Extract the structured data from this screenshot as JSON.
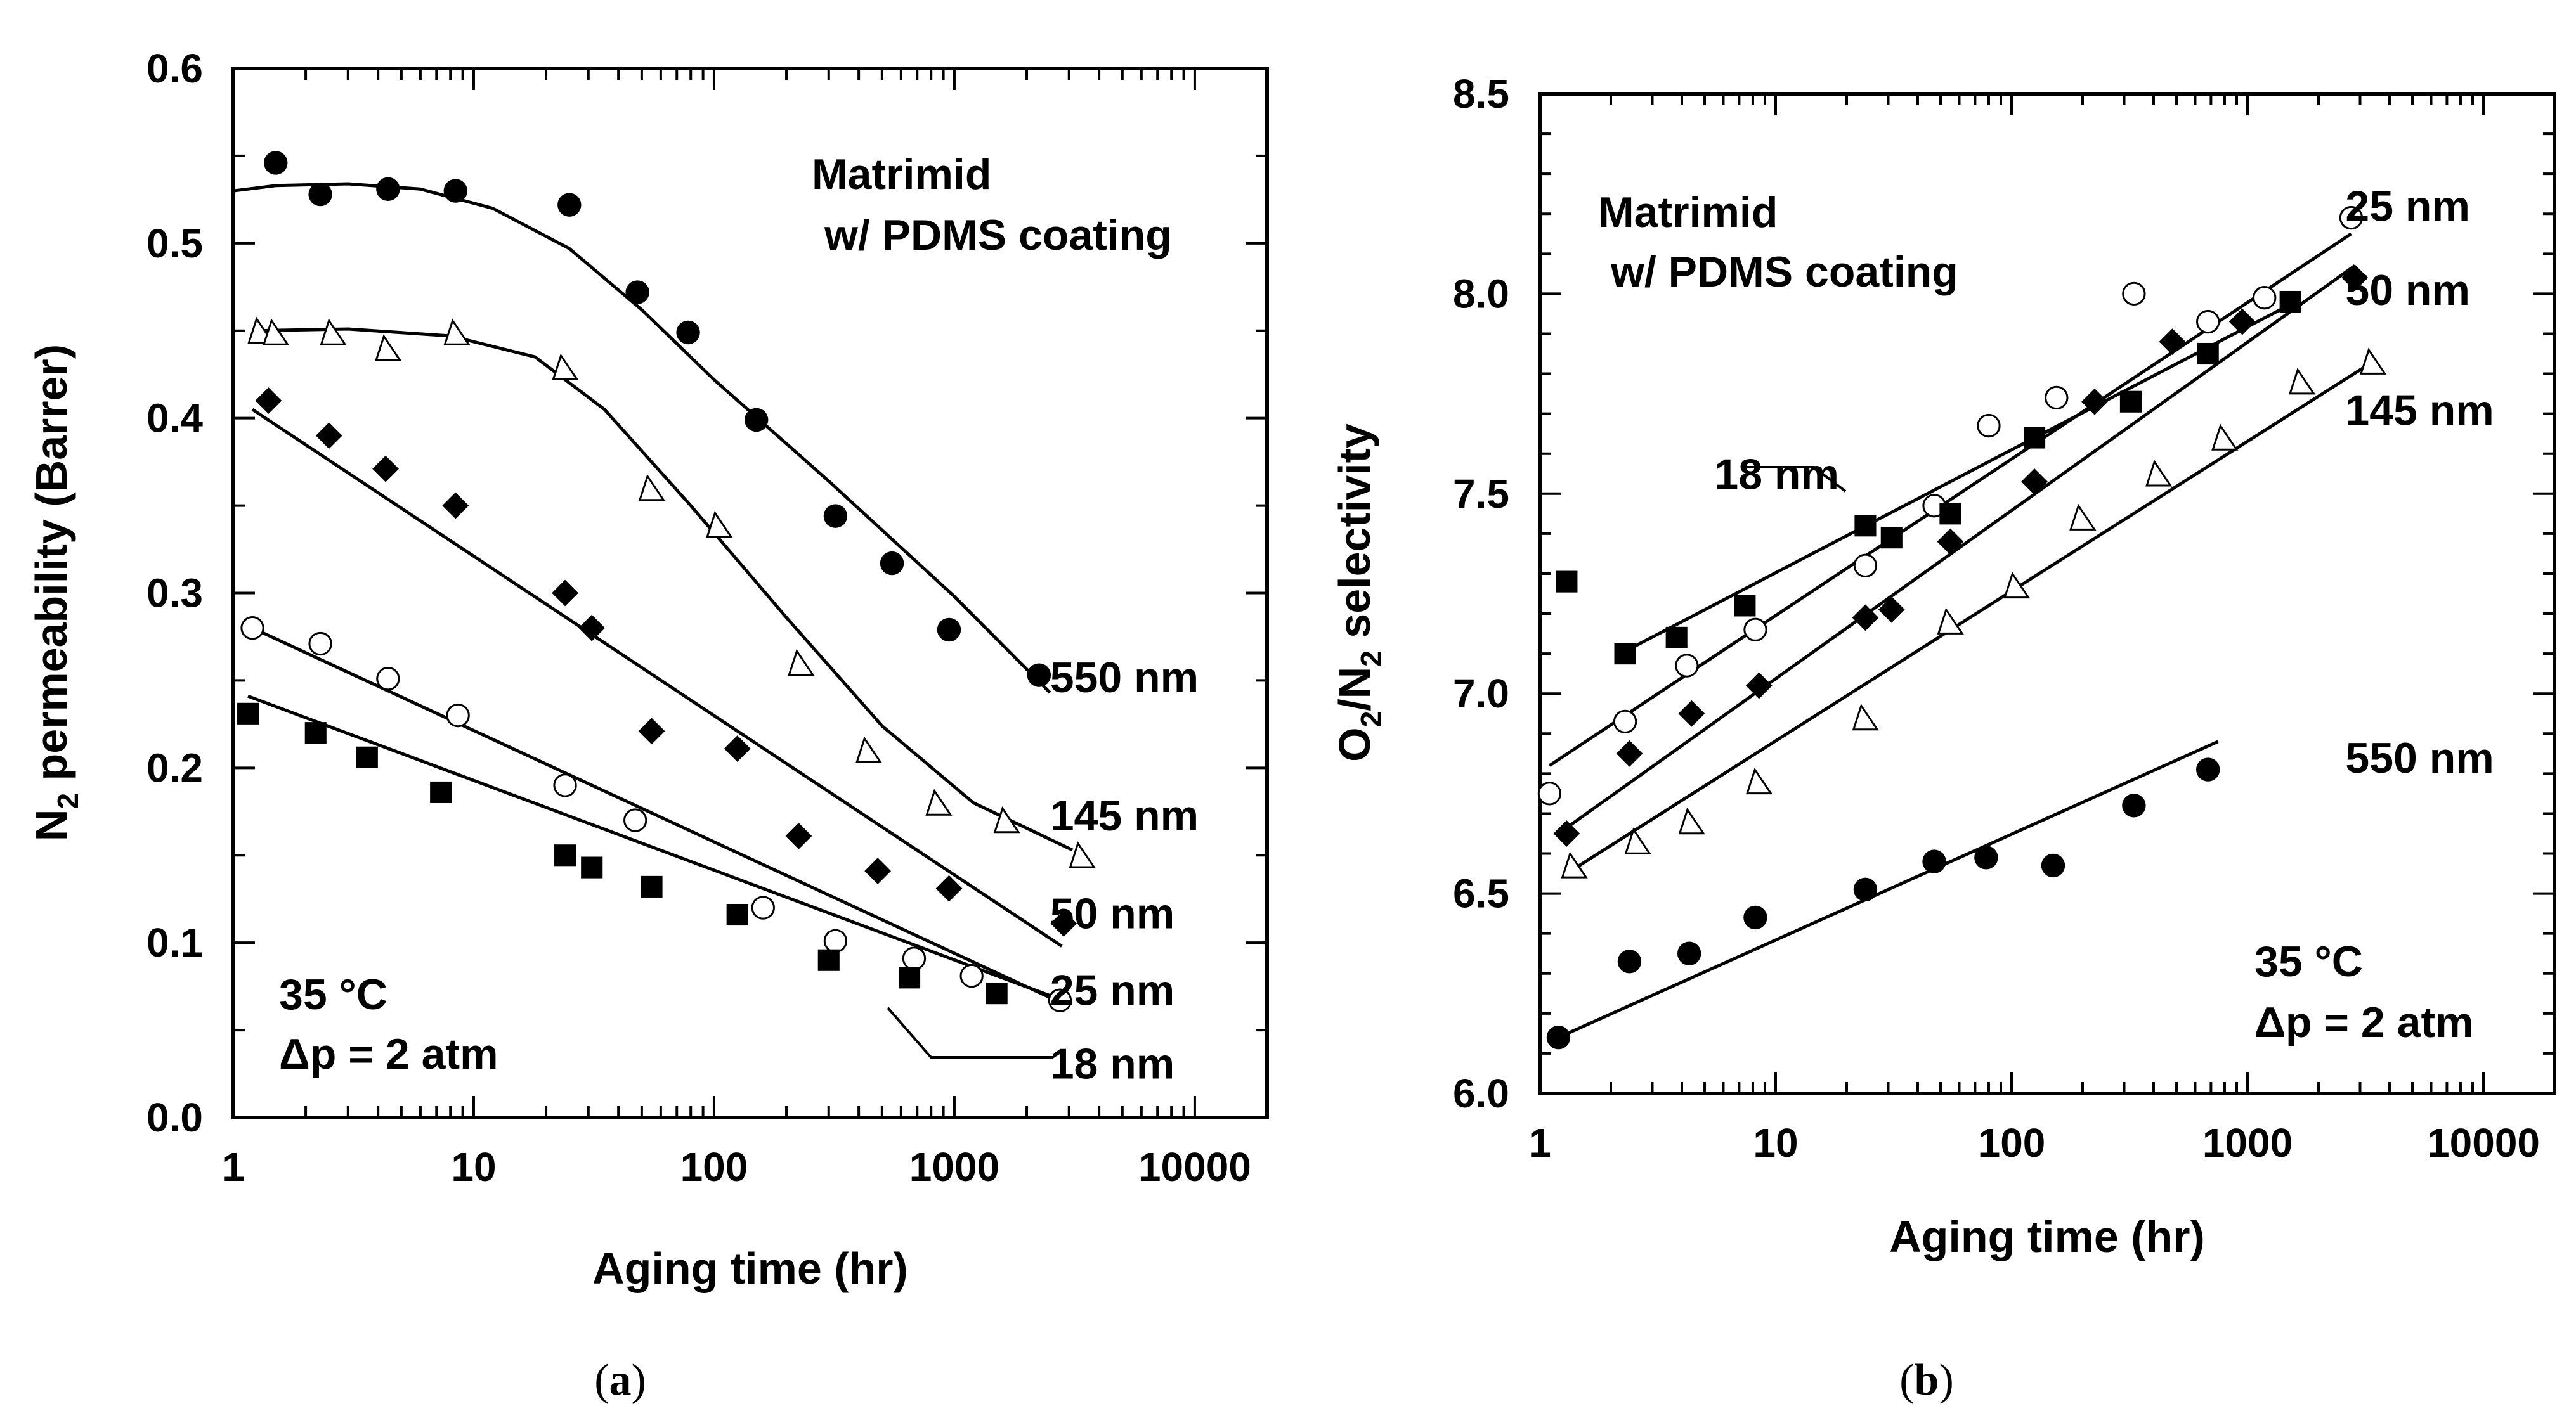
{
  "chart_data": [
    {
      "type": "scatter",
      "panel_label": "a",
      "xlabel": "Aging time (hr)",
      "ylabel": "N",
      "ylabel_sub": "2",
      "ylabel_rest": " permeability (Barrer)",
      "xscale": "log",
      "xlim": [
        1,
        20000
      ],
      "ylim": [
        0,
        0.6
      ],
      "xticks": [
        {
          "v": 1,
          "label": "1"
        },
        {
          "v": 10,
          "label": "10"
        },
        {
          "v": 100,
          "label": "100"
        },
        {
          "v": 1000,
          "label": "1000"
        },
        {
          "v": 10000,
          "label": "10000"
        }
      ],
      "yticks": [
        {
          "v": 0,
          "label": "0.0"
        },
        {
          "v": 0.1,
          "label": "0.1"
        },
        {
          "v": 0.2,
          "label": "0.2"
        },
        {
          "v": 0.3,
          "label": "0.3"
        },
        {
          "v": 0.4,
          "label": "0.4"
        },
        {
          "v": 0.5,
          "label": "0.5"
        },
        {
          "v": 0.6,
          "label": "0.6"
        }
      ],
      "title_lines": [
        "Matrimid",
        "w/ PDMS coating"
      ],
      "conditions": [
        "35 °C",
        "Δp = 2 atm"
      ],
      "series": [
        {
          "name": "550 nm",
          "marker": "filled-circle",
          "points": [
            [
              1.5,
              0.546
            ],
            [
              2.3,
              0.528
            ],
            [
              4.4,
              0.531
            ],
            [
              8.4,
              0.53
            ],
            [
              25,
              0.522
            ],
            [
              48,
              0.472
            ],
            [
              78,
              0.449
            ],
            [
              150,
              0.399
            ],
            [
              320,
              0.344
            ],
            [
              550,
              0.317
            ],
            [
              950,
              0.279
            ],
            [
              2250,
              0.253
            ]
          ],
          "fit": [
            [
              1,
              0.53
            ],
            [
              1.5,
              0.533
            ],
            [
              3,
              0.534
            ],
            [
              6,
              0.531
            ],
            [
              12,
              0.52
            ],
            [
              25,
              0.497
            ],
            [
              50,
              0.462
            ],
            [
              100,
              0.422
            ],
            [
              300,
              0.364
            ],
            [
              1000,
              0.298
            ],
            [
              2500,
              0.243
            ]
          ]
        },
        {
          "name": "145 nm",
          "marker": "open-triangle",
          "points": [
            [
              1.3,
              0.45
            ],
            [
              1.5,
              0.449
            ],
            [
              2.6,
              0.449
            ],
            [
              4.4,
              0.44
            ],
            [
              8.5,
              0.449
            ],
            [
              24,
              0.429
            ],
            [
              55,
              0.36
            ],
            [
              105,
              0.339
            ],
            [
              230,
              0.26
            ],
            [
              440,
              0.21
            ],
            [
              860,
              0.18
            ],
            [
              1650,
              0.17
            ],
            [
              3400,
              0.15
            ]
          ],
          "fit": [
            [
              1.2,
              0.45
            ],
            [
              3,
              0.451
            ],
            [
              8,
              0.447
            ],
            [
              18,
              0.435
            ],
            [
              35,
              0.405
            ],
            [
              80,
              0.35
            ],
            [
              200,
              0.286
            ],
            [
              500,
              0.224
            ],
            [
              1200,
              0.18
            ],
            [
              3100,
              0.153
            ]
          ]
        },
        {
          "name": "50 nm",
          "marker": "filled-diamond",
          "points": [
            [
              1.4,
              0.41
            ],
            [
              2.5,
              0.39
            ],
            [
              4.3,
              0.371
            ],
            [
              8.4,
              0.35
            ],
            [
              24,
              0.3
            ],
            [
              31,
              0.28
            ],
            [
              55,
              0.221
            ],
            [
              125,
              0.211
            ],
            [
              225,
              0.161
            ],
            [
              480,
              0.141
            ],
            [
              950,
              0.131
            ],
            [
              2850,
              0.111
            ]
          ],
          "fit": [
            [
              1.2,
              0.405
            ],
            [
              2800,
              0.098
            ]
          ]
        },
        {
          "name": "25 nm",
          "marker": "open-circle",
          "points": [
            [
              1.2,
              0.28
            ],
            [
              2.3,
              0.271
            ],
            [
              4.4,
              0.251
            ],
            [
              8.6,
              0.23
            ],
            [
              24,
              0.19
            ],
            [
              47,
              0.17
            ],
            [
              160,
              0.12
            ],
            [
              320,
              0.101
            ],
            [
              680,
              0.091
            ],
            [
              1180,
              0.081
            ],
            [
              2750,
              0.067
            ]
          ],
          "fit": [
            [
              1.2,
              0.28
            ],
            [
              2750,
              0.066
            ]
          ]
        },
        {
          "name": "18 nm",
          "marker": "filled-square",
          "points": [
            [
              1.15,
              0.231
            ],
            [
              2.2,
              0.22
            ],
            [
              3.6,
              0.206
            ],
            [
              7.3,
              0.186
            ],
            [
              24,
              0.15
            ],
            [
              31,
              0.143
            ],
            [
              55,
              0.132
            ],
            [
              125,
              0.116
            ],
            [
              300,
              0.09
            ],
            [
              650,
              0.08
            ],
            [
              1500,
              0.071
            ]
          ],
          "fit": [
            [
              1.15,
              0.241
            ],
            [
              2700,
              0.068
            ]
          ]
        }
      ],
      "labels": [
        {
          "text": "550 nm",
          "x": 2500,
          "y": 0.252
        },
        {
          "text": "145 nm",
          "x": 2500,
          "y": 0.173
        },
        {
          "text": "50 nm",
          "x": 2500,
          "y": 0.117
        },
        {
          "text": "25 nm",
          "x": 2500,
          "y": 0.073
        },
        {
          "text": "18 nm",
          "x": 2500,
          "y": 0.031
        }
      ]
    },
    {
      "type": "scatter",
      "panel_label": "b",
      "xlabel": "Aging time (hr)",
      "ylabel": "O",
      "ylabel_sub": "2",
      "ylabel_mid": "/N",
      "ylabel_sub2": "2",
      "ylabel_rest": " selectivity",
      "xscale": "log",
      "xlim": [
        1,
        20000
      ],
      "ylim": [
        6.0,
        8.5
      ],
      "xticks": [
        {
          "v": 1,
          "label": "1"
        },
        {
          "v": 10,
          "label": "10"
        },
        {
          "v": 100,
          "label": "100"
        },
        {
          "v": 1000,
          "label": "1000"
        },
        {
          "v": 10000,
          "label": "10000"
        }
      ],
      "yticks": [
        {
          "v": 6.0,
          "label": "6.0"
        },
        {
          "v": 6.5,
          "label": "6.5"
        },
        {
          "v": 7.0,
          "label": "7.0"
        },
        {
          "v": 7.5,
          "label": "7.5"
        },
        {
          "v": 8.0,
          "label": "8.0"
        },
        {
          "v": 8.5,
          "label": "8.5"
        }
      ],
      "title_lines": [
        "Matrimid",
        "w/ PDMS coating"
      ],
      "conditions": [
        "35 °C",
        "Δp = 2 atm"
      ],
      "series": [
        {
          "name": "25 nm",
          "marker": "open-circle",
          "points": [
            [
              1.1,
              6.75
            ],
            [
              2.3,
              6.93
            ],
            [
              4.2,
              7.07
            ],
            [
              8.2,
              7.16
            ],
            [
              24,
              7.32
            ],
            [
              47,
              7.47
            ],
            [
              80,
              7.67
            ],
            [
              155,
              7.74
            ],
            [
              330,
              8.0
            ],
            [
              680,
              7.93
            ],
            [
              1180,
              7.99
            ],
            [
              2750,
              8.19
            ]
          ],
          "fit": [
            [
              1.1,
              6.82
            ],
            [
              2750,
              8.15
            ]
          ]
        },
        {
          "name": "50 nm",
          "marker": "filled-diamond",
          "points": [
            [
              1.3,
              6.65
            ],
            [
              2.4,
              6.85
            ],
            [
              4.4,
              6.95
            ],
            [
              8.5,
              7.02
            ],
            [
              24,
              7.19
            ],
            [
              31,
              7.21
            ],
            [
              55,
              7.38
            ],
            [
              125,
              7.53
            ],
            [
              225,
              7.73
            ],
            [
              480,
              7.88
            ],
            [
              950,
              7.93
            ],
            [
              2850,
              8.04
            ]
          ],
          "fit": [
            [
              1.2,
              6.65
            ],
            [
              2850,
              8.07
            ]
          ]
        },
        {
          "name": "145 nm",
          "marker": "open-triangle",
          "points": [
            [
              1.4,
              6.57
            ],
            [
              2.6,
              6.63
            ],
            [
              4.4,
              6.68
            ],
            [
              8.5,
              6.78
            ],
            [
              24,
              6.94
            ],
            [
              55,
              7.18
            ],
            [
              105,
              7.27
            ],
            [
              200,
              7.44
            ],
            [
              420,
              7.55
            ],
            [
              800,
              7.64
            ],
            [
              1700,
              7.78
            ],
            [
              3400,
              7.83
            ]
          ],
          "fit": [
            [
              1.3,
              6.55
            ],
            [
              3200,
              7.82
            ]
          ]
        },
        {
          "name": "18 nm",
          "marker": "filled-square",
          "points": [
            [
              1.3,
              7.28
            ],
            [
              2.3,
              7.1
            ],
            [
              3.8,
              7.14
            ],
            [
              7.4,
              7.22
            ],
            [
              24,
              7.42
            ],
            [
              31,
              7.39
            ],
            [
              55,
              7.45
            ],
            [
              125,
              7.64
            ],
            [
              320,
              7.73
            ],
            [
              680,
              7.85
            ],
            [
              1520,
              7.98
            ]
          ],
          "fit": [
            [
              2.2,
              7.1
            ],
            [
              1600,
              7.98
            ]
          ]
        },
        {
          "name": "550 nm",
          "marker": "filled-circle",
          "points": [
            [
              1.2,
              6.14
            ],
            [
              2.4,
              6.33
            ],
            [
              4.3,
              6.35
            ],
            [
              8.2,
              6.44
            ],
            [
              24,
              6.51
            ],
            [
              47,
              6.58
            ],
            [
              78,
              6.59
            ],
            [
              150,
              6.57
            ],
            [
              330,
              6.72
            ],
            [
              680,
              6.81
            ]
          ],
          "fit": [
            [
              1.2,
              6.14
            ],
            [
              750,
              6.88
            ]
          ]
        }
      ],
      "labels": [
        {
          "text": "25 nm",
          "x": 2600,
          "y": 8.22
        },
        {
          "text": "50 nm",
          "x": 2600,
          "y": 8.01
        },
        {
          "text": "145 nm",
          "x": 2600,
          "y": 7.71
        },
        {
          "text": "550 nm",
          "x": 2600,
          "y": 6.84
        },
        {
          "text": "18 nm",
          "x": 5.5,
          "y": 7.55
        }
      ]
    }
  ],
  "captions": {
    "a": {
      "open": "(",
      "letter": "a",
      "close": ")"
    },
    "b": {
      "open": "(",
      "letter": "b",
      "close": ")"
    }
  }
}
